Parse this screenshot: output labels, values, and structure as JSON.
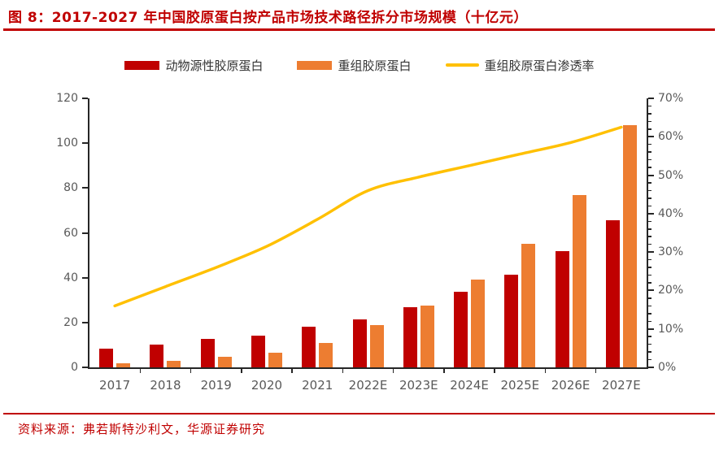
{
  "title": "图 8：2017-2027 年中国胶原蛋白按产品市场技术路径拆分市场规模（十亿元）",
  "source_note": "资料来源：弗若斯特沙利文，华源证券研究",
  "colors": {
    "title_red": "#C00000",
    "rule_red": "#C00000",
    "axis_line": "#262626",
    "axis_label": "#595959",
    "bar_animal": "#C00000",
    "bar_recombinant": "#ED7D31",
    "penetration_line": "#FFC000"
  },
  "chart_data": {
    "type": "bar",
    "categories": [
      "2017",
      "2018",
      "2019",
      "2020",
      "2021",
      "2022E",
      "2023E",
      "2024E",
      "2025E",
      "2026E",
      "2027E"
    ],
    "series": [
      {
        "name": "动物源性胶原蛋白",
        "type": "bar",
        "axis": "left",
        "color": "#C00000",
        "values": [
          8.3,
          10.3,
          12.7,
          14.3,
          18.2,
          21.5,
          26.7,
          33.8,
          41.5,
          52,
          65.5
        ]
      },
      {
        "name": "重组胶原蛋白",
        "type": "bar",
        "axis": "left",
        "color": "#ED7D31",
        "values": [
          1.7,
          2.8,
          4.6,
          6.6,
          11,
          18.7,
          27.4,
          39,
          55,
          77,
          108
        ]
      },
      {
        "name": "重组胶原蛋白渗透率",
        "type": "line",
        "axis": "right",
        "color": "#FFC000",
        "values": [
          16,
          21,
          26,
          31.5,
          38.5,
          46,
          49.5,
          52.5,
          55.5,
          58.5,
          62.5
        ]
      }
    ],
    "left_axis": {
      "min": 0,
      "max": 120,
      "step": 20,
      "ticks": [
        "0",
        "20",
        "40",
        "60",
        "80",
        "100",
        "120"
      ]
    },
    "right_axis": {
      "min": 0,
      "max": 70,
      "step": 10,
      "minor_step": 2,
      "ticks": [
        "0%",
        "10%",
        "20%",
        "30%",
        "40%",
        "50%",
        "60%",
        "70%"
      ]
    },
    "grid": false,
    "legend_position": "top-center"
  }
}
